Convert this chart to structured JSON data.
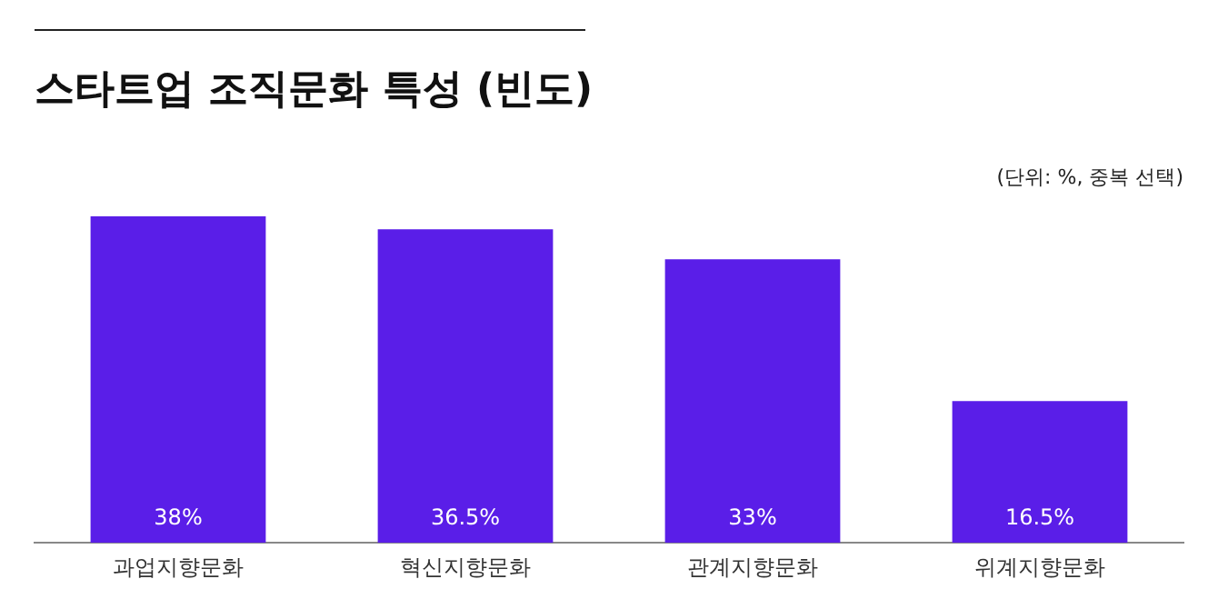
{
  "chart_data": {
    "type": "bar",
    "title": "스타트업 조직문화 특성 (빈도)",
    "annotations": [
      "(단위: %, 중복 선택)"
    ],
    "categories": [
      "과업지향문화",
      "혁신지향문화",
      "관계지향문화",
      "위계지향문화"
    ],
    "values": [
      38,
      36.5,
      33,
      16.5
    ],
    "value_labels": [
      "38%",
      "36.5%",
      "33%",
      "16.5%"
    ],
    "color": "#5a1ee8",
    "grid": false,
    "legend": false
  }
}
